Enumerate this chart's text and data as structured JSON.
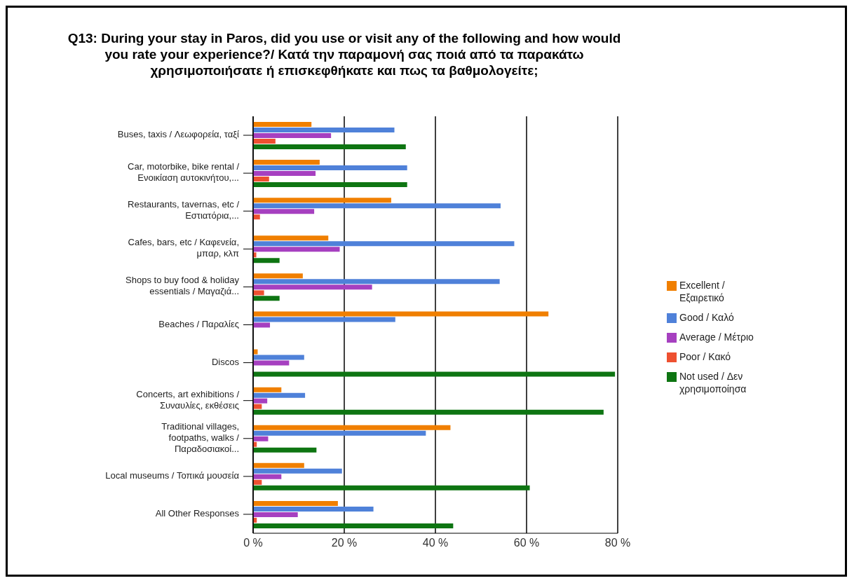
{
  "chart_data": {
    "type": "bar",
    "orientation": "horizontal",
    "title": "Q13: During your stay in Paros, did you use or visit any of the following and how would you rate your experience?/ Κατά την παραμονή σας ποιά από τα παρακάτω χρησιμοποιήσατε ή επισκεφθήκατε και πως τα βαθμολογείτε;",
    "categories": [
      "Buses, taxis / Λεωφορεία, ταξί",
      "Car, motorbike, bike rental / Ενοικίαση αυτοκινήτου,...",
      "Restaurants, tavernas, etc / Εστιατόρια,...",
      "Cafes, bars, etc / Καφενεία, μπαρ, κλπ",
      "Shops to buy food & holiday essentials / Μαγαζιά...",
      "Beaches / Παραλίες",
      "Discos",
      "Concerts, art exhibitions / Συναυλίες, εκθέσεις",
      "Traditional villages, footpaths, walks / Παραδοσιακοί...",
      "Local museums / Τοπικά μουσεία",
      "All Other Responses"
    ],
    "series": [
      {
        "name": "Excellent / Εξαιρετικό",
        "color": "#f07f00",
        "values": [
          12.8,
          14.6,
          30.3,
          16.5,
          10.9,
          64.8,
          1.0,
          6.2,
          43.3,
          11.2,
          18.6
        ]
      },
      {
        "name": "Good / Καλό",
        "color": "#4f81d9",
        "values": [
          31.0,
          33.8,
          54.3,
          57.3,
          54.1,
          31.2,
          11.2,
          11.4,
          37.9,
          19.5,
          26.4
        ]
      },
      {
        "name": "Average / Μέτριο",
        "color": "#a640c0",
        "values": [
          17.1,
          13.7,
          13.4,
          19.0,
          26.1,
          3.7,
          7.9,
          3.1,
          3.3,
          6.2,
          9.8
        ]
      },
      {
        "name": "Poor / Κακό",
        "color": "#ee5030",
        "values": [
          4.9,
          3.5,
          1.5,
          0.7,
          2.4,
          0,
          0,
          1.9,
          0.8,
          1.9,
          0.8
        ]
      },
      {
        "name": "Not used / Δεν χρησιμοποίησα",
        "color": "#0e7512",
        "values": [
          33.5,
          33.8,
          0,
          5.8,
          5.8,
          0,
          79.4,
          76.9,
          13.9,
          60.7,
          43.9
        ]
      }
    ],
    "xlim": [
      0,
      80
    ],
    "xticks": [
      {
        "value": 0,
        "label": "0 %"
      },
      {
        "value": 20,
        "label": "20 %"
      },
      {
        "value": 40,
        "label": "40 %"
      },
      {
        "value": 60,
        "label": "60 %"
      },
      {
        "value": 80,
        "label": "80 %"
      }
    ],
    "grid": "x",
    "legend": "right"
  }
}
